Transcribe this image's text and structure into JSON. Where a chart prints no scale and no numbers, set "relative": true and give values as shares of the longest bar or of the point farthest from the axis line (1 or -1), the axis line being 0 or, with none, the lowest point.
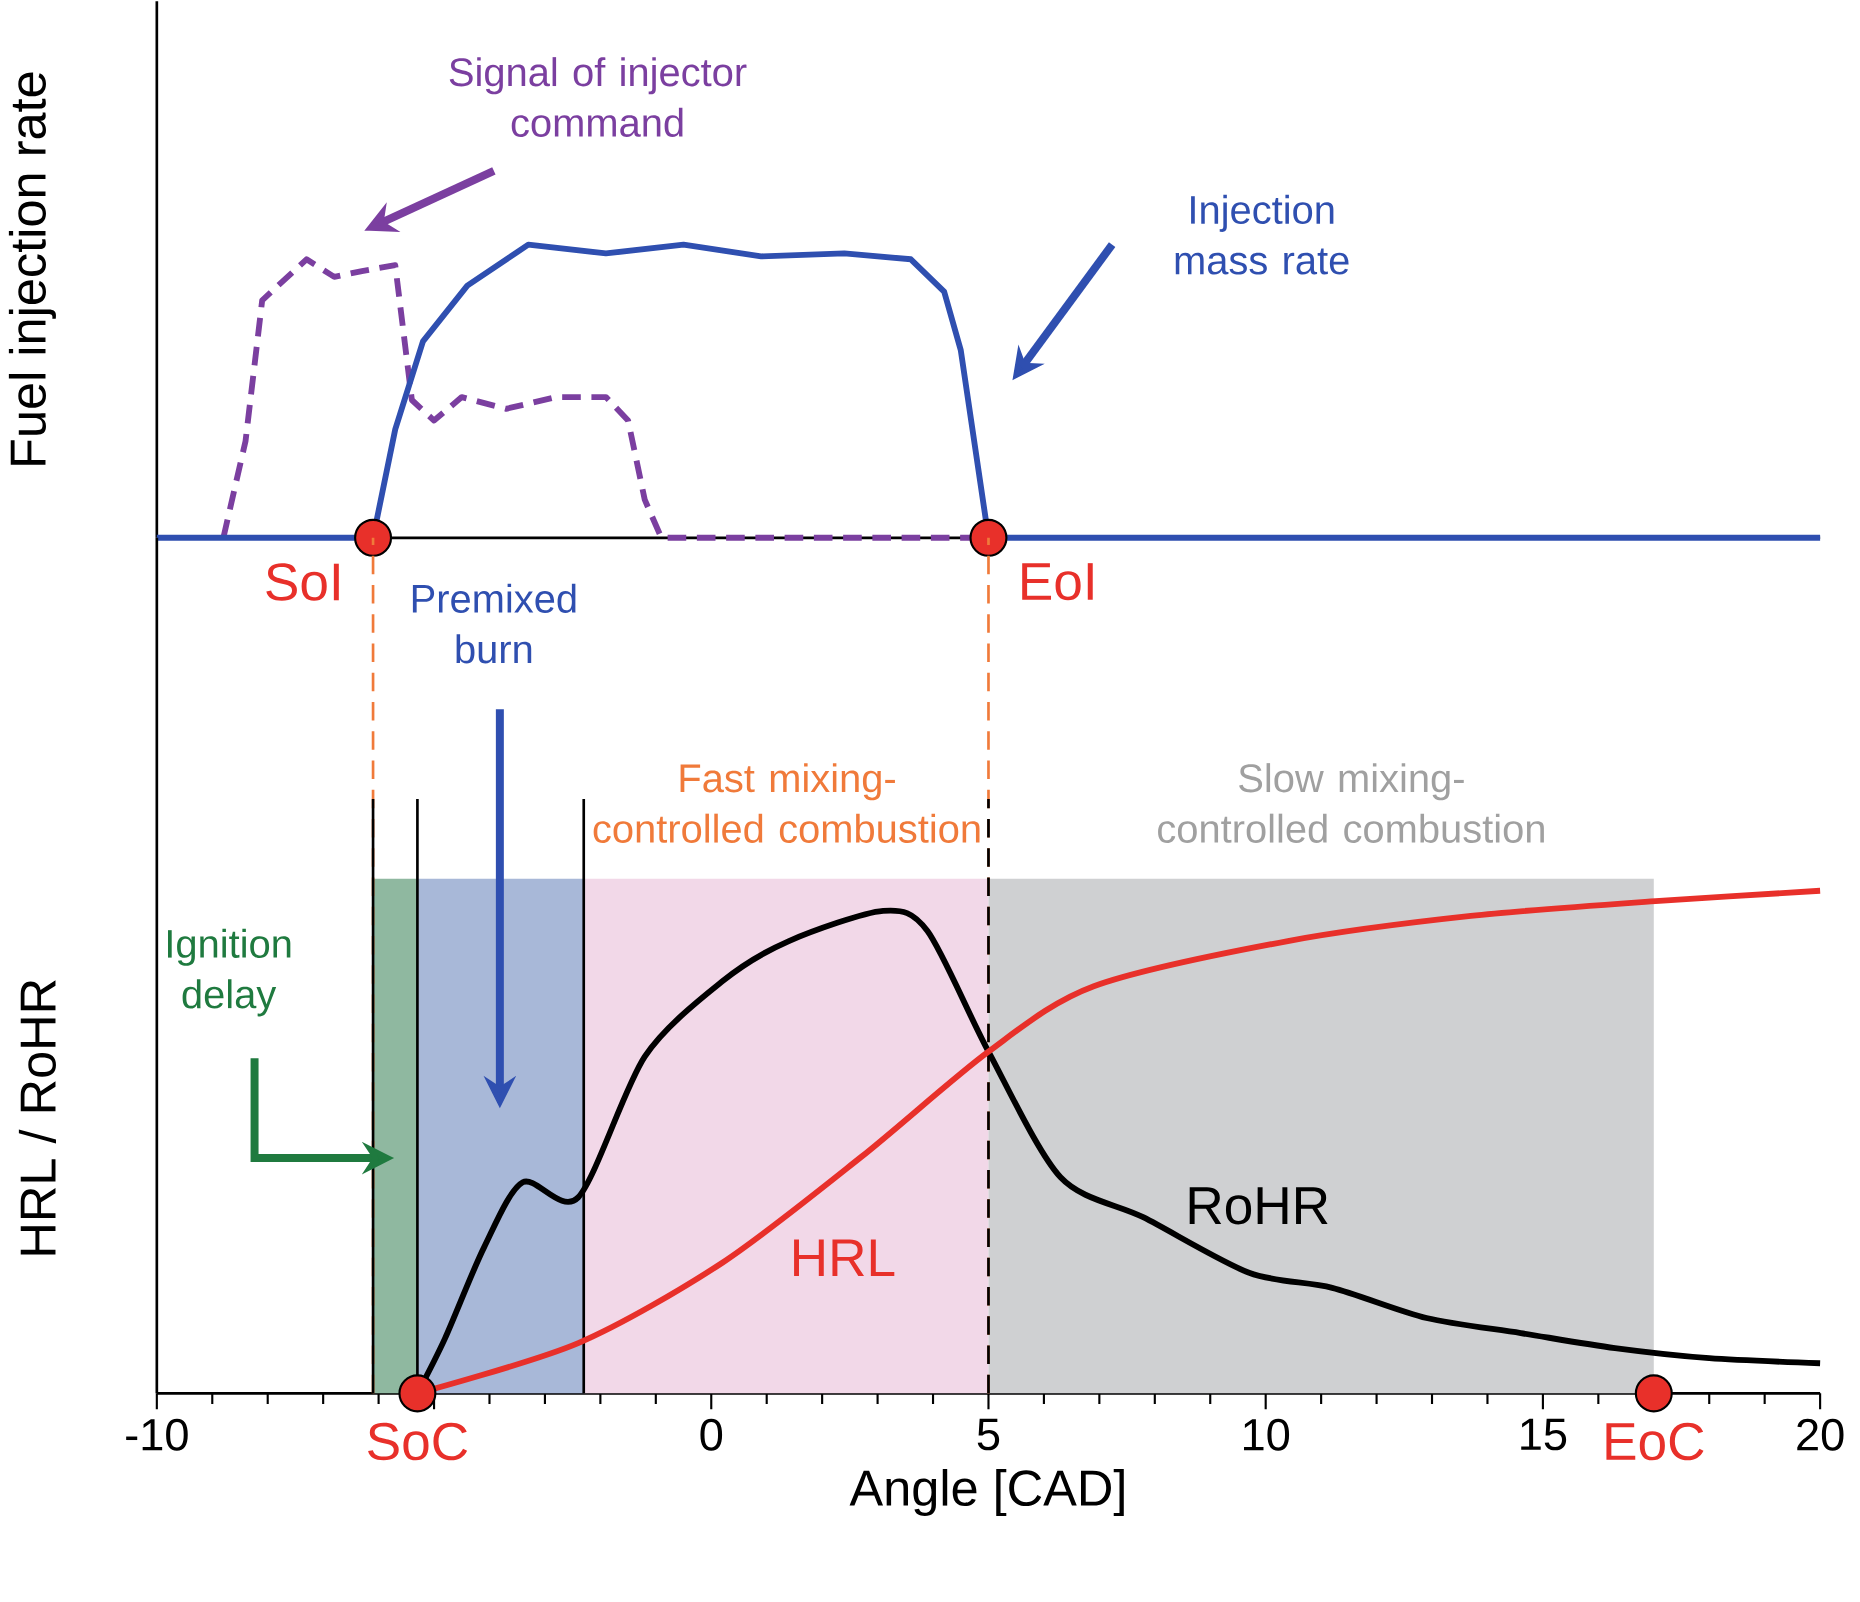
{
  "chart_data": [
    {
      "type": "line",
      "relative": true,
      "ylabel": "Fuel injection rate",
      "xlim": [
        -10,
        20
      ],
      "tick_labels": false,
      "series": [
        {
          "name": "Signal of injector command",
          "color": "#7b3fa0",
          "line_style": "dashed",
          "x": [
            -8.8,
            -8.4,
            -8.1,
            -7.3,
            -6.8,
            -6.3,
            -5.7,
            -5.4,
            -5.0,
            -4.5,
            -3.7,
            -2.8,
            -1.9,
            -1.5,
            -1.2,
            -0.9,
            5.0
          ],
          "values": [
            0,
            0.33,
            0.81,
            0.95,
            0.89,
            0.91,
            0.93,
            0.47,
            0.4,
            0.48,
            0.44,
            0.48,
            0.48,
            0.4,
            0.13,
            0,
            0
          ]
        },
        {
          "name": "Injection mass rate",
          "color": "#2f4fb0",
          "x": [
            -10,
            -6.1,
            -5.7,
            -5.2,
            -4.4,
            -3.3,
            -1.9,
            -0.5,
            0.9,
            2.4,
            3.6,
            4.2,
            4.5,
            5.0,
            20
          ],
          "values": [
            0,
            0,
            0.37,
            0.67,
            0.86,
            1.0,
            0.97,
            1.0,
            0.96,
            0.97,
            0.95,
            0.84,
            0.64,
            0,
            0
          ]
        }
      ],
      "annotations": [
        {
          "text": "SoI",
          "x": -6.1,
          "y": 0
        },
        {
          "text": "EoI",
          "x": 5.0,
          "y": 0
        }
      ]
    },
    {
      "type": "line",
      "relative": true,
      "ylabel": "HRL / RoHR",
      "xlabel": "Angle [CAD]",
      "xlim": [
        -10,
        20
      ],
      "xticks": [
        -10,
        {
          "value": -5,
          "label": null
        },
        0,
        5,
        10,
        15,
        20
      ],
      "tick_labels": "x",
      "series": [
        {
          "name": "RoHR",
          "color": "#000000",
          "x": [
            -5.3,
            -4.8,
            -4.1,
            -3.4,
            -2.4,
            -1.2,
            0.2,
            1.4,
            3.1,
            3.9,
            5.0,
            6.3,
            7.8,
            9.7,
            11.2,
            12.9,
            14.6,
            16.3,
            18.0,
            20.0
          ],
          "values": [
            0,
            0.11,
            0.29,
            0.42,
            0.39,
            0.67,
            0.82,
            0.9,
            0.96,
            0.92,
            0.68,
            0.43,
            0.35,
            0.24,
            0.21,
            0.15,
            0.12,
            0.09,
            0.07,
            0.06
          ]
        },
        {
          "name": "HRL",
          "color": "#e8302a",
          "x": [
            -5.3,
            -2.4,
            0.2,
            2.7,
            5.0,
            6.9,
            10.4,
            13.7,
            17.1,
            20.0
          ],
          "values": [
            0,
            0.1,
            0.26,
            0.47,
            0.68,
            0.81,
            0.9,
            0.95,
            0.98,
            1.0
          ]
        }
      ],
      "bands": [
        {
          "axis": "x",
          "from": -6.1,
          "to": -5.3,
          "label": "Ignition delay",
          "color": "#8fb8a0"
        },
        {
          "axis": "x",
          "from": -5.3,
          "to": -2.3,
          "label": "Premixed burn",
          "color": "#a8b8d8"
        },
        {
          "axis": "x",
          "from": -2.3,
          "to": 5.0,
          "label": "Fast mixing-controlled combustion",
          "color": "#f2d8e8"
        },
        {
          "axis": "x",
          "from": 5.0,
          "to": 17.0,
          "label": "Slow mixing-controlled combustion",
          "color": "#cfd0d2"
        }
      ],
      "ref_lines": [
        {
          "axis": "x",
          "value": -6.1,
          "color": "#f07a3a",
          "line_style": "dashed"
        },
        {
          "axis": "x",
          "value": 5.0,
          "color": "#f07a3a",
          "line_style": "dashed"
        },
        {
          "axis": "x",
          "value": -6.1,
          "color": "#000000",
          "line_style": "solid"
        },
        {
          "axis": "x",
          "value": -5.3,
          "color": "#000000",
          "line_style": "solid"
        },
        {
          "axis": "x",
          "value": -2.3,
          "color": "#000000",
          "line_style": "solid"
        },
        {
          "axis": "x",
          "value": 5.0,
          "color": "#000000",
          "line_style": "dashed"
        }
      ],
      "annotations": [
        {
          "text": "SoC",
          "x": -5.3,
          "y": 0
        },
        {
          "text": "EoC",
          "x": 17.0,
          "y": 0
        }
      ]
    }
  ]
}
